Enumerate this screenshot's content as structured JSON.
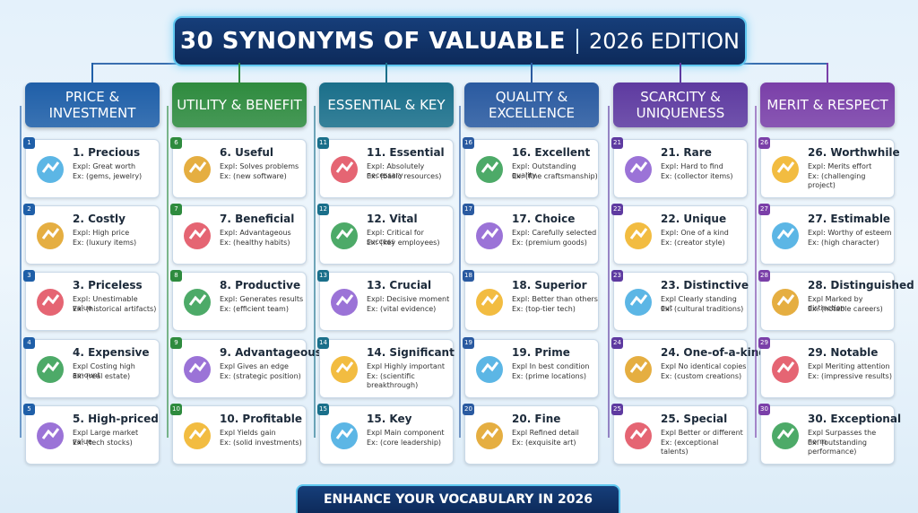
{
  "title": "30 SYNONYMS OF VALUABLE",
  "subtitle": "2026 EDITION",
  "columns": [
    {
      "header": "PRICE & INVESTMENT",
      "items": [
        {
          "badge": "1",
          "term": "1. Precious",
          "expl": "Expl: Great worth",
          "ex": "Ex: (gems, jewelry)"
        },
        {
          "badge": "2",
          "term": "2. Costly",
          "expl": "Expl: High price",
          "ex": "Ex: (luxury items)"
        },
        {
          "badge": "3",
          "term": "3. Priceless",
          "expl": "Expl: Unestimable value",
          "ex": "Ex: (historical artifacts)"
        },
        {
          "badge": "4",
          "term": "4. Expensive",
          "expl": "Expl Costing high amount",
          "ex": "Ex: (real estate)"
        },
        {
          "badge": "5",
          "term": "5. High-priced",
          "expl": "Expl Large market value",
          "ex": "Ex: (tech stocks)"
        }
      ]
    },
    {
      "header": "UTILITY & BENEFIT",
      "items": [
        {
          "badge": "6",
          "term": "6. Useful",
          "expl": "Expl: Solves problems",
          "ex": "Ex: (new software)"
        },
        {
          "badge": "7",
          "term": "7. Beneficial",
          "expl": "Expl: Advantageous",
          "ex": "Ex: (healthy habits)"
        },
        {
          "badge": "8",
          "term": "8. Productive",
          "expl": "Expl: Generates results",
          "ex": "Ex: (efficient team)"
        },
        {
          "badge": "9",
          "term": "9. Advantageous",
          "expl": "Expl Gives an edge",
          "ex": "Ex: (strategic position)"
        },
        {
          "badge": "10",
          "term": "10. Profitable",
          "expl": "Expl Yields gain",
          "ex": "Ex: (solid investments)"
        }
      ]
    },
    {
      "header": "ESSENTIAL & KEY",
      "items": [
        {
          "badge": "11",
          "term": "11. Essential",
          "expl": "Expl: Absolutely necessary",
          "ex": "Ex: (basic resources)"
        },
        {
          "badge": "12",
          "term": "12. Vital",
          "expl": "Expl: Critical for success",
          "ex": "Ex: (key employees)"
        },
        {
          "badge": "13",
          "term": "13. Crucial",
          "expl": "Expl: Decisive moment",
          "ex": "Ex: (vital evidence)"
        },
        {
          "badge": "14",
          "term": "14. Significant",
          "expl": "Expl Highly important",
          "ex": "Ex: (scientific breakthrough)"
        },
        {
          "badge": "15",
          "term": "15. Key",
          "expl": "Expl Main component",
          "ex": "Ex: (core leadership)"
        }
      ]
    },
    {
      "header": "QUALITY & EXCELLENCE",
      "items": [
        {
          "badge": "16",
          "term": "16. Excellent",
          "expl": "Expl: Outstanding quality",
          "ex": "Ex: (fine craftsmanship)"
        },
        {
          "badge": "17",
          "term": "17. Choice",
          "expl": "Expl: Carefully selected",
          "ex": "Ex: (premium goods)"
        },
        {
          "badge": "18",
          "term": "18. Superior",
          "expl": "Expl: Better than others",
          "ex": "Ex: (top-tier tech)"
        },
        {
          "badge": "19",
          "term": "19. Prime",
          "expl": "Expl In best condition",
          "ex": "Ex: (prime locations)"
        },
        {
          "badge": "20",
          "term": "20. Fine",
          "expl": "Expl Refined detail",
          "ex": "Ex: (exquisite art)"
        }
      ]
    },
    {
      "header": "SCARCITY & UNIQUENESS",
      "items": [
        {
          "badge": "21",
          "term": "21. Rare",
          "expl": "Expl: Hard to find",
          "ex": "Ex: (collector items)"
        },
        {
          "badge": "22",
          "term": "22. Unique",
          "expl": "Expl: One of a kind",
          "ex": "Ex: (creator style)"
        },
        {
          "badge": "23",
          "term": "23. Distinctive",
          "expl": "Expl Clearly standing out",
          "ex": "Ex: (cultural traditions)"
        },
        {
          "badge": "24",
          "term": "24. One-of-a-kind",
          "expl": "Expl No identical copies",
          "ex": "Ex: (custom creations)"
        },
        {
          "badge": "25",
          "term": "25. Special",
          "expl": "Expl Better or different",
          "ex": "Ex: (exceptional talents)"
        }
      ]
    },
    {
      "header": "MERIT & RESPECT",
      "items": [
        {
          "badge": "26",
          "term": "26. Worthwhile",
          "expl": "Expl: Merits effort",
          "ex": "Ex: (challenging project)"
        },
        {
          "badge": "27",
          "term": "27. Estimable",
          "expl": "Expl: Worthy of esteem",
          "ex": "Ex: (high character)"
        },
        {
          "badge": "28",
          "term": "28. Distinguished",
          "expl": "Expl Marked by distinction",
          "ex": "Ex: (notable careers)"
        },
        {
          "badge": "29",
          "term": "29. Notable",
          "expl": "Expl Meriting attention",
          "ex": "Ex: (impressive results)"
        },
        {
          "badge": "30",
          "term": "30. Exceptional",
          "expl": "Expl Surpasses the norm",
          "ex": "Ex: (outstanding performance)"
        }
      ]
    }
  ],
  "footer": "ENHANCE YOUR VOCABULARY IN 2026"
}
